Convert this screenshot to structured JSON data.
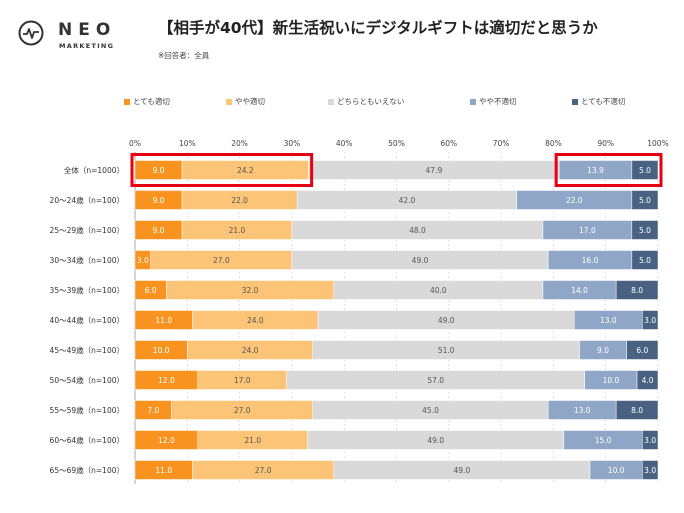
{
  "brand": {
    "name": "NEO",
    "sub": "MARKETING"
  },
  "chart_data": {
    "type": "bar",
    "orientation": "horizontal",
    "stacked": true,
    "title": "【相手が40代】新生活祝いにデジタルギフトは適切だと思うか",
    "note": "※回答者：全員",
    "xlim": [
      0,
      100
    ],
    "x_ticks": [
      "0%",
      "10%",
      "20%",
      "30%",
      "40%",
      "50%",
      "60%",
      "70%",
      "80%",
      "90%",
      "100%"
    ],
    "legend_position": "top",
    "categories": [
      "全体（n=1000）",
      "20～24歳（n=100）",
      "25～29歳（n=100）",
      "30～34歳（n=100）",
      "35～39歳（n=100）",
      "40～44歳（n=100）",
      "45～49歳（n=100）",
      "50～54歳（n=100）",
      "55～59歳（n=100）",
      "60～64歳（n=100）",
      "65～69歳（n=100）"
    ],
    "series": [
      {
        "name": "とても適切",
        "color": "#f7931e",
        "label_color": "#ffffff",
        "values": [
          9.0,
          9.0,
          9.0,
          3.0,
          6.0,
          11.0,
          10.0,
          12.0,
          7.0,
          12.0,
          11.0
        ]
      },
      {
        "name": "やや適切",
        "color": "#fbc476",
        "label_color": "#555555",
        "values": [
          24.2,
          22.0,
          21.0,
          27.0,
          32.0,
          24.0,
          24.0,
          17.0,
          27.0,
          21.0,
          27.0
        ]
      },
      {
        "name": "どちらともいえない",
        "color": "#d9d9d9",
        "label_color": "#555555",
        "values": [
          47.9,
          42.0,
          48.0,
          49.0,
          40.0,
          49.0,
          51.0,
          57.0,
          45.0,
          49.0,
          49.0
        ]
      },
      {
        "name": "やや不適切",
        "color": "#8fa6c7",
        "label_color": "#ffffff",
        "values": [
          13.9,
          22.0,
          17.0,
          16.0,
          14.0,
          13.0,
          9.0,
          10.0,
          13.0,
          15.0,
          10.0
        ]
      },
      {
        "name": "とても不適切",
        "color": "#4a6282",
        "label_color": "#ffffff",
        "values": [
          5.0,
          5.0,
          5.0,
          5.0,
          8.0,
          3.0,
          6.0,
          4.0,
          8.0,
          3.0,
          3.0
        ]
      }
    ],
    "highlight_boxes": [
      {
        "row": 0,
        "from_series": 0,
        "to_series": 1,
        "color": "#e60012"
      },
      {
        "row": 0,
        "from_series": 3,
        "to_series": 4,
        "color": "#e60012"
      }
    ]
  }
}
